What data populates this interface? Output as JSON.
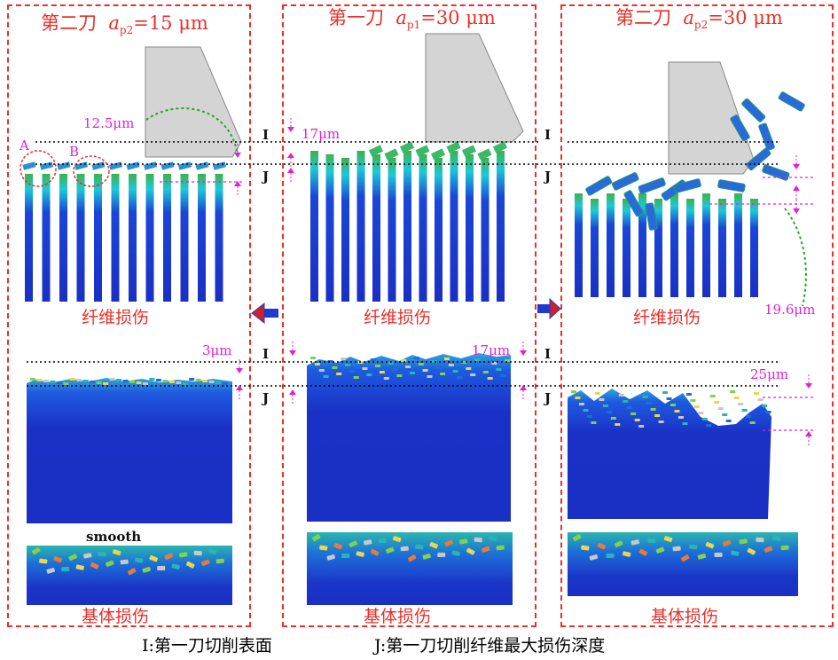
{
  "panels": {
    "left": {
      "title_prefix": "第二刀",
      "ap_symbol": "a",
      "ap_sub": "p2",
      "ap_value": "=15 μm",
      "fiber_label": "纤维损伤",
      "matrix_label": "基体损伤",
      "depth_fiber": "12.5μm",
      "depth_matrix": "3μm",
      "note": "smooth",
      "marker_a": "A",
      "marker_b": "B"
    },
    "middle": {
      "title_prefix": "第一刀",
      "ap_symbol": "a",
      "ap_sub": "p1",
      "ap_value": "=30 μm",
      "fiber_label": "纤维损伤",
      "matrix_label": "基体损伤",
      "depth_fiber": "17μm",
      "depth_matrix": "17μm"
    },
    "right": {
      "title_prefix": "第二刀",
      "ap_symbol": "a",
      "ap_sub": "p2",
      "ap_value": "=30 μm",
      "fiber_label": "纤维损伤",
      "matrix_label": "基体损伤",
      "depth_fiber": "19.6μm",
      "depth_matrix": "25μm"
    }
  },
  "line_labels": {
    "i": "I",
    "j": "J"
  },
  "footer": {
    "i_caption": "I:第一刀切削表面",
    "j_caption": "J:第一刀切削纤维最大损伤深度"
  },
  "colors": {
    "panel_border": "#e8302a",
    "label_red": "#e8302a",
    "magenta": "#e020d8",
    "tool_gray": "#d4d4d4",
    "fiber_blue": "#1a2fc4",
    "matrix_blue": "#2032c8",
    "arrow_blue": "#1f3ad0",
    "arrow_head": "#d0202a",
    "path_green": "#2aa12a"
  },
  "icons": {
    "left_arrow": "arrow-left-icon",
    "right_arrow": "arrow-right-icon"
  }
}
